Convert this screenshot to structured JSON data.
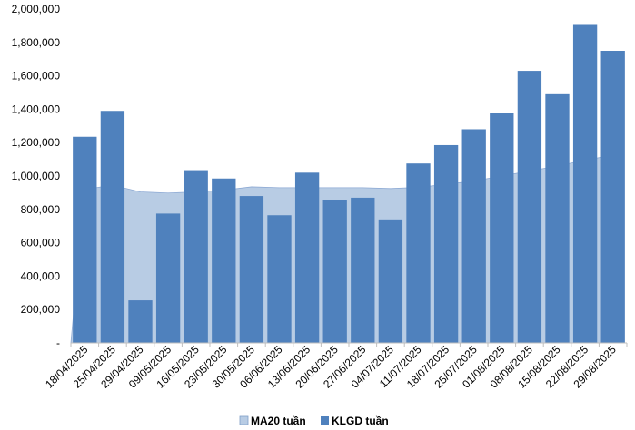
{
  "chart_data": {
    "type": "bar",
    "categories": [
      "18/04/2025",
      "25/04/2025",
      "29/04/2025",
      "09/05/2025",
      "16/05/2025",
      "23/05/2025",
      "30/05/2025",
      "06/06/2025",
      "13/06/2025",
      "20/06/2025",
      "27/06/2025",
      "04/07/2025",
      "11/07/2025",
      "18/07/2025",
      "25/07/2025",
      "01/08/2025",
      "08/08/2025",
      "15/08/2025",
      "22/08/2025",
      "29/08/2025"
    ],
    "series": [
      {
        "name": "MA20 tuần",
        "type": "area",
        "color": "#b8cce4",
        "values": [
          920000,
          945000,
          905000,
          898000,
          905000,
          915000,
          935000,
          930000,
          930000,
          930000,
          930000,
          925000,
          932000,
          950000,
          970000,
          1000000,
          1030000,
          1060000,
          1095000,
          1125000
        ]
      },
      {
        "name": "KLGD tuần",
        "type": "bar",
        "color": "#4f81bd",
        "values": [
          1235000,
          1390000,
          255000,
          775000,
          1035000,
          985000,
          880000,
          765000,
          1020000,
          855000,
          870000,
          740000,
          1075000,
          1185000,
          1280000,
          1375000,
          1630000,
          1490000,
          1905000,
          1750000
        ]
      }
    ],
    "yticks": [
      "-",
      "200,000",
      "400,000",
      "600,000",
      "800,000",
      "1,000,000",
      "1,200,000",
      "1,400,000",
      "1,600,000",
      "1,800,000",
      "2,000,000"
    ],
    "ylim": [
      0,
      2000000
    ],
    "ystep": 200000,
    "title": "",
    "xlabel": "",
    "ylabel": "",
    "legend_position": "bottom"
  }
}
